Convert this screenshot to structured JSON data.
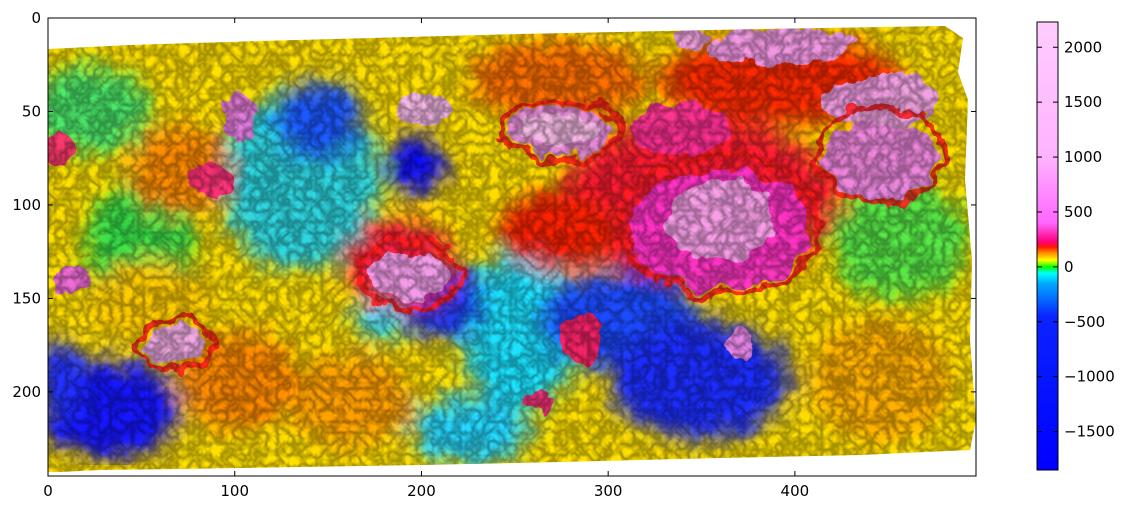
{
  "chart_data": {
    "type": "heatmap",
    "title": "",
    "xlabel": "",
    "ylabel": "",
    "xlim": [
      0,
      497
    ],
    "ylim": [
      245,
      0
    ],
    "y_axis_inverted": true,
    "x_ticks": [
      0,
      100,
      200,
      300,
      400
    ],
    "y_ticks": [
      0,
      50,
      100,
      150,
      200
    ],
    "colorbar": {
      "range": [
        -1850,
        2230
      ],
      "ticks": [
        -1500,
        -1000,
        -500,
        0,
        500,
        1000,
        1500,
        2000
      ],
      "tick_labels": [
        "−1500",
        "−1000",
        "−500",
        "0",
        "500",
        "1000",
        "1500",
        "2000"
      ],
      "colormap": [
        {
          "value": -1850,
          "color": "#0000ff"
        },
        {
          "value": -450,
          "color": "#0a24ff"
        },
        {
          "value": -150,
          "color": "#00aaff"
        },
        {
          "value": -60,
          "color": "#00ffff"
        },
        {
          "value": 0,
          "color": "#00ff00"
        },
        {
          "value": 60,
          "color": "#ffff00"
        },
        {
          "value": 120,
          "color": "#ff9900"
        },
        {
          "value": 180,
          "color": "#ff1a00"
        },
        {
          "value": 230,
          "color": "#ff007f"
        },
        {
          "value": 400,
          "color": "#ff66ff"
        },
        {
          "value": 1000,
          "color": "#ffb3ff"
        },
        {
          "value": 2230,
          "color": "#ffccff"
        }
      ]
    },
    "grid": false,
    "legend": "colorbar-right"
  }
}
